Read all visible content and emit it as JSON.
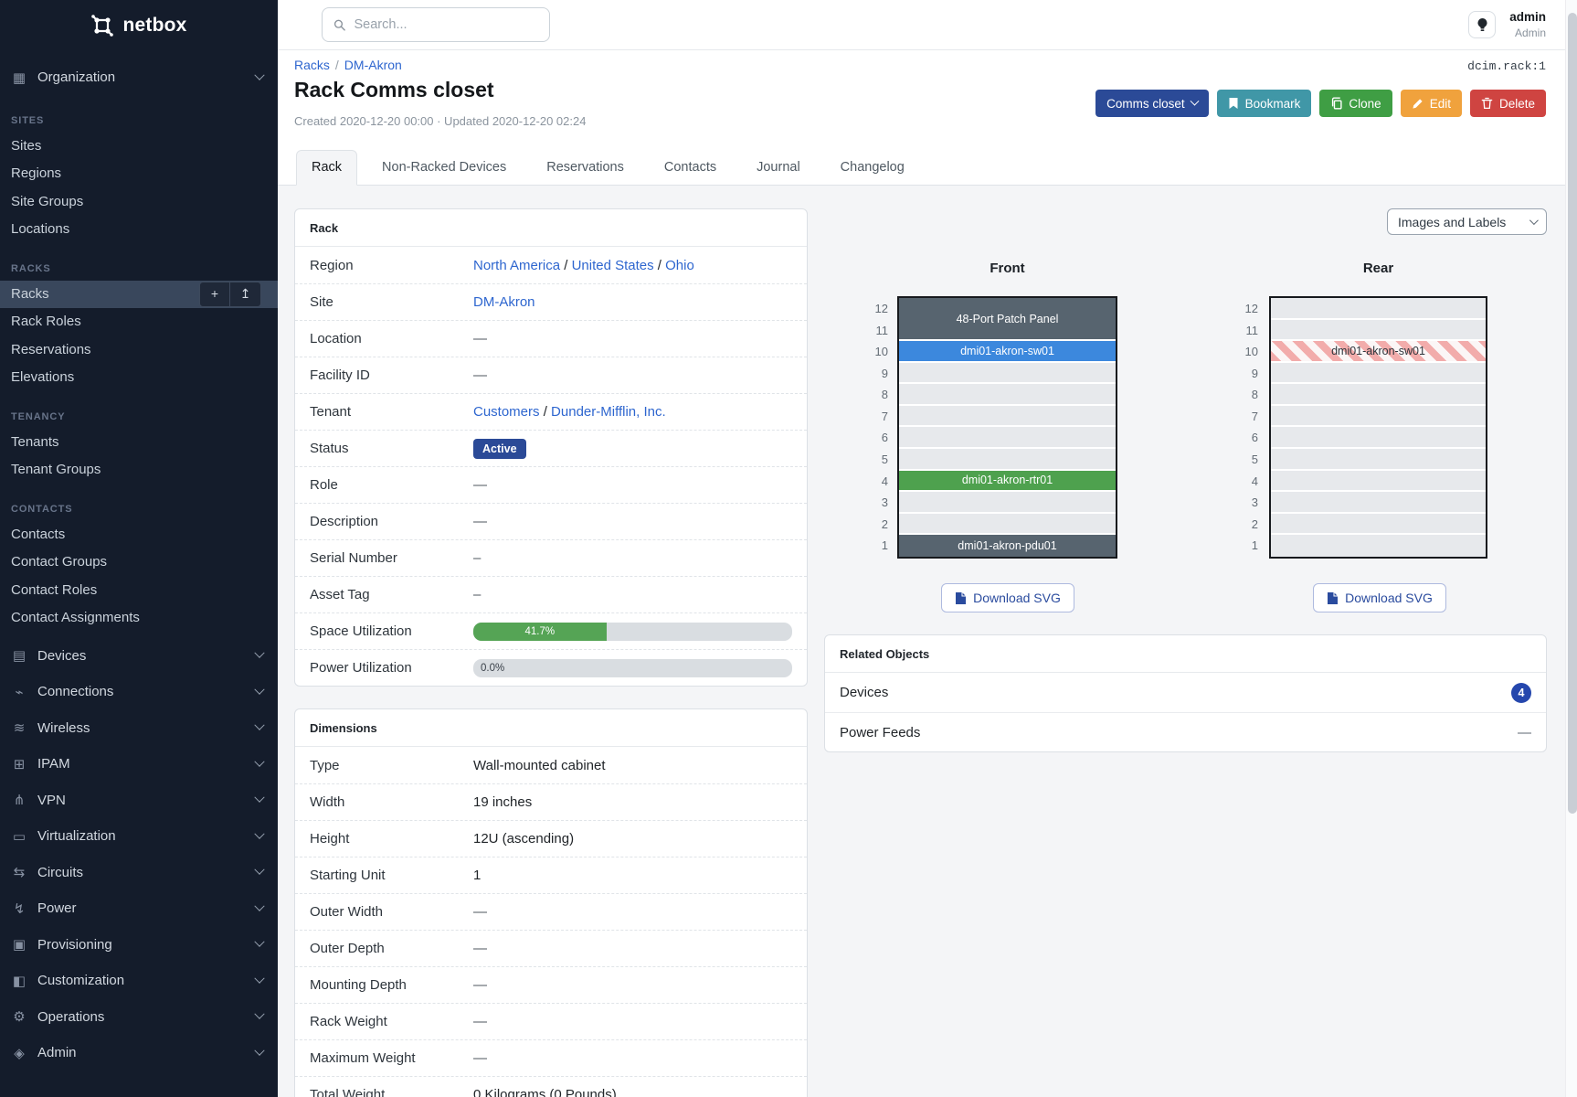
{
  "colors": {
    "primary": "#2b4a97",
    "link": "#2e66cf",
    "teal": "#4097a7",
    "green": "#3f9e44",
    "orange": "#f0a23d",
    "red": "#cf4441",
    "progress_green": "#55a455",
    "badge_blue": "#2547ad",
    "slot_blue": "#3c88dd",
    "slot_green": "#4ea14e",
    "slot_slate": "#57646f",
    "stripe_pink": "#f2acab"
  },
  "sidebar": {
    "logo_text": "netbox",
    "groups": [
      {
        "type": "collapsible",
        "label": "Organization",
        "icon": "building-icon"
      },
      {
        "type": "section",
        "label": "SITES"
      },
      {
        "type": "link",
        "label": "Sites"
      },
      {
        "type": "link",
        "label": "Regions"
      },
      {
        "type": "link",
        "label": "Site Groups"
      },
      {
        "type": "link",
        "label": "Locations"
      },
      {
        "type": "section",
        "label": "RACKS"
      },
      {
        "type": "link",
        "label": "Racks",
        "active": true,
        "buttons": [
          {
            "icon": "plus-icon",
            "glyph": "+"
          },
          {
            "icon": "upload-icon",
            "glyph": "↥"
          }
        ]
      },
      {
        "type": "link",
        "label": "Rack Roles"
      },
      {
        "type": "link",
        "label": "Reservations"
      },
      {
        "type": "link",
        "label": "Elevations"
      },
      {
        "type": "section",
        "label": "TENANCY"
      },
      {
        "type": "link",
        "label": "Tenants"
      },
      {
        "type": "link",
        "label": "Tenant Groups"
      },
      {
        "type": "section",
        "label": "CONTACTS"
      },
      {
        "type": "link",
        "label": "Contacts"
      },
      {
        "type": "link",
        "label": "Contact Groups"
      },
      {
        "type": "link",
        "label": "Contact Roles"
      },
      {
        "type": "link",
        "label": "Contact Assignments"
      },
      {
        "type": "collapsible",
        "label": "Devices",
        "icon": "server-icon",
        "first": true
      },
      {
        "type": "collapsible",
        "label": "Connections",
        "icon": "plug-icon"
      },
      {
        "type": "collapsible",
        "label": "Wireless",
        "icon": "wifi-icon"
      },
      {
        "type": "collapsible",
        "label": "IPAM",
        "icon": "ip-grid-icon"
      },
      {
        "type": "collapsible",
        "label": "VPN",
        "icon": "network-icon"
      },
      {
        "type": "collapsible",
        "label": "Virtualization",
        "icon": "monitor-icon"
      },
      {
        "type": "collapsible",
        "label": "Circuits",
        "icon": "circuit-icon"
      },
      {
        "type": "collapsible",
        "label": "Power",
        "icon": "bolt-icon"
      },
      {
        "type": "collapsible",
        "label": "Provisioning",
        "icon": "document-icon"
      },
      {
        "type": "collapsible",
        "label": "Customization",
        "icon": "toolbox-icon"
      },
      {
        "type": "collapsible",
        "label": "Operations",
        "icon": "gears-icon"
      },
      {
        "type": "collapsible",
        "label": "Admin",
        "icon": "users-icon"
      }
    ]
  },
  "topbar": {
    "search_placeholder": "Search...",
    "username": "admin",
    "role": "Admin"
  },
  "page": {
    "breadcrumb": [
      {
        "label": "Racks"
      },
      {
        "label": "DM-Akron"
      }
    ],
    "object_type": "dcim.rack:1",
    "title": "Rack Comms closet",
    "meta": "Created 2020-12-20 00:00 · Updated 2020-12-20 02:24",
    "actions": {
      "group_button": "Comms closet",
      "bookmark": "Bookmark",
      "clone": "Clone",
      "edit": "Edit",
      "delete": "Delete"
    },
    "tabs": [
      {
        "label": "Rack",
        "active": true
      },
      {
        "label": "Non-Racked Devices"
      },
      {
        "label": "Reservations"
      },
      {
        "label": "Contacts"
      },
      {
        "label": "Journal"
      },
      {
        "label": "Changelog"
      }
    ]
  },
  "rack_panel": {
    "title": "Rack",
    "rows": [
      {
        "label": "Region",
        "type": "links",
        "links": [
          "North America",
          "United States",
          "Ohio"
        ]
      },
      {
        "label": "Site",
        "type": "links",
        "links": [
          "DM-Akron"
        ]
      },
      {
        "label": "Location",
        "type": "dash",
        "value": "—"
      },
      {
        "label": "Facility ID",
        "type": "dash",
        "value": "—"
      },
      {
        "label": "Tenant",
        "type": "links",
        "links": [
          "Customers",
          "Dunder-Mifflin, Inc."
        ]
      },
      {
        "label": "Status",
        "type": "badge",
        "value": "Active"
      },
      {
        "label": "Role",
        "type": "dash",
        "value": "—"
      },
      {
        "label": "Description",
        "type": "dash",
        "value": "—"
      },
      {
        "label": "Serial Number",
        "type": "dash",
        "value": "–"
      },
      {
        "label": "Asset Tag",
        "type": "dash",
        "value": "–"
      },
      {
        "label": "Space Utilization",
        "type": "progress",
        "percent": 41.7,
        "text": "41.7%"
      },
      {
        "label": "Power Utilization",
        "type": "progress_zero",
        "percent": 0,
        "text": "0.0%"
      }
    ]
  },
  "dimensions_panel": {
    "title": "Dimensions",
    "rows": [
      {
        "label": "Type",
        "type": "text",
        "value": "Wall-mounted cabinet"
      },
      {
        "label": "Width",
        "type": "text",
        "value": "19 inches"
      },
      {
        "label": "Height",
        "type": "text",
        "value": "12U (ascending)"
      },
      {
        "label": "Starting Unit",
        "type": "text",
        "value": "1"
      },
      {
        "label": "Outer Width",
        "type": "dash",
        "value": "—"
      },
      {
        "label": "Outer Depth",
        "type": "dash",
        "value": "—"
      },
      {
        "label": "Mounting Depth",
        "type": "dash",
        "value": "—"
      },
      {
        "label": "Rack Weight",
        "type": "dash",
        "value": "—"
      },
      {
        "label": "Maximum Weight",
        "type": "dash",
        "value": "—"
      },
      {
        "label": "Total Weight",
        "type": "text",
        "value": "0 Kilograms (0 Pounds)"
      }
    ]
  },
  "elevation": {
    "view_select": "Images and Labels",
    "download_label": "Download SVG",
    "unit_numbers": [
      12,
      11,
      10,
      9,
      8,
      7,
      6,
      5,
      4,
      3,
      2,
      1
    ],
    "front": {
      "title": "Front",
      "units": [
        {
          "span": 2,
          "label": "48-Port Patch Panel",
          "style": "slate"
        },
        {
          "span": 1,
          "label": "dmi01-akron-sw01",
          "style": "blue"
        },
        {
          "span": 1,
          "style": "empty"
        },
        {
          "span": 1,
          "style": "empty"
        },
        {
          "span": 1,
          "style": "empty"
        },
        {
          "span": 1,
          "style": "empty"
        },
        {
          "span": 1,
          "style": "empty"
        },
        {
          "span": 1,
          "label": "dmi01-akron-rtr01",
          "style": "green"
        },
        {
          "span": 1,
          "style": "empty"
        },
        {
          "span": 1,
          "style": "empty"
        },
        {
          "span": 1,
          "label": "dmi01-akron-pdu01",
          "style": "slate"
        }
      ]
    },
    "rear": {
      "title": "Rear",
      "units": [
        {
          "span": 1,
          "style": "empty"
        },
        {
          "span": 1,
          "style": "empty"
        },
        {
          "span": 1,
          "label": "dmi01-akron-sw01",
          "style": "striped"
        },
        {
          "span": 1,
          "style": "empty"
        },
        {
          "span": 1,
          "style": "empty"
        },
        {
          "span": 1,
          "style": "empty"
        },
        {
          "span": 1,
          "style": "empty"
        },
        {
          "span": 1,
          "style": "empty"
        },
        {
          "span": 1,
          "style": "empty"
        },
        {
          "span": 1,
          "style": "empty"
        },
        {
          "span": 1,
          "style": "empty"
        },
        {
          "span": 1,
          "style": "empty"
        }
      ]
    }
  },
  "related": {
    "title": "Related Objects",
    "rows": [
      {
        "label": "Devices",
        "count": "4"
      },
      {
        "label": "Power Feeds",
        "count": "—"
      }
    ]
  }
}
